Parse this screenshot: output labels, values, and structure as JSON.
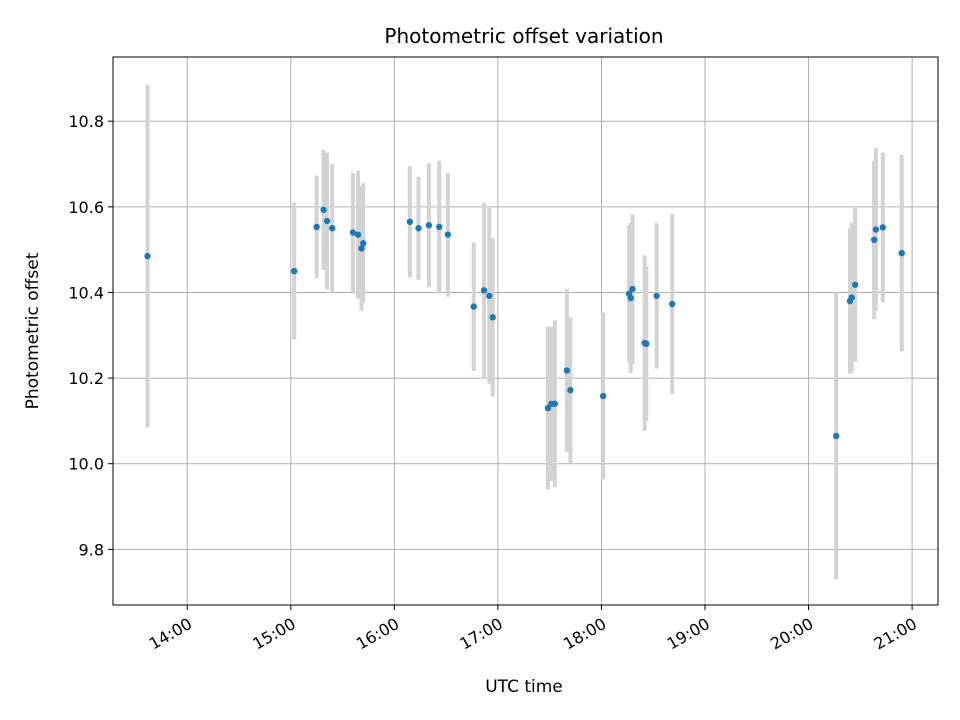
{
  "chart_data": {
    "type": "scatter",
    "title": "Photometric offset variation",
    "xlabel": "UTC time",
    "ylabel": "Photometric offset",
    "x_ticks": [
      "14:00",
      "15:00",
      "16:00",
      "17:00",
      "18:00",
      "19:00",
      "20:00",
      "21:00"
    ],
    "y_ticks": [
      "9.8",
      "10.0",
      "10.2",
      "10.4",
      "10.6",
      "10.8"
    ],
    "xlim": [
      "13:17",
      "21:15"
    ],
    "ylim": [
      9.67,
      10.95
    ],
    "grid": true,
    "colors": {
      "points": "#1f77b4",
      "errorbars": "#d3d3d3",
      "grid": "#b0b0b0"
    },
    "series": [
      {
        "points": [
          {
            "x": "13:37",
            "y": 10.485,
            "err": 0.4
          },
          {
            "x": "15:02",
            "y": 10.45,
            "err": 0.16
          },
          {
            "x": "15:15",
            "y": 10.553,
            "err": 0.12
          },
          {
            "x": "15:19",
            "y": 10.593,
            "err": 0.14
          },
          {
            "x": "15:21",
            "y": 10.567,
            "err": 0.16
          },
          {
            "x": "15:24",
            "y": 10.55,
            "err": 0.15
          },
          {
            "x": "15:36",
            "y": 10.54,
            "err": 0.14
          },
          {
            "x": "15:39",
            "y": 10.535,
            "err": 0.15
          },
          {
            "x": "15:41",
            "y": 10.503,
            "err": 0.145
          },
          {
            "x": "15:42",
            "y": 10.515,
            "err": 0.14
          },
          {
            "x": "16:09",
            "y": 10.565,
            "err": 0.13
          },
          {
            "x": "16:14",
            "y": 10.55,
            "err": 0.12
          },
          {
            "x": "16:20",
            "y": 10.557,
            "err": 0.145
          },
          {
            "x": "16:26",
            "y": 10.553,
            "err": 0.155
          },
          {
            "x": "16:31",
            "y": 10.535,
            "err": 0.145
          },
          {
            "x": "16:46",
            "y": 10.367,
            "err": 0.15
          },
          {
            "x": "16:52",
            "y": 10.405,
            "err": 0.205
          },
          {
            "x": "16:55",
            "y": 10.392,
            "err": 0.205
          },
          {
            "x": "16:57",
            "y": 10.342,
            "err": 0.185
          },
          {
            "x": "17:29",
            "y": 10.13,
            "err": 0.19
          },
          {
            "x": "17:31",
            "y": 10.14,
            "err": 0.18
          },
          {
            "x": "17:33",
            "y": 10.14,
            "err": 0.195
          },
          {
            "x": "17:40",
            "y": 10.218,
            "err": 0.19
          },
          {
            "x": "17:42",
            "y": 10.172,
            "err": 0.17
          },
          {
            "x": "18:01",
            "y": 10.158,
            "err": 0.195
          },
          {
            "x": "18:16",
            "y": 10.397,
            "err": 0.16
          },
          {
            "x": "18:17",
            "y": 10.387,
            "err": 0.175
          },
          {
            "x": "18:18",
            "y": 10.408,
            "err": 0.175
          },
          {
            "x": "18:25",
            "y": 10.282,
            "err": 0.205
          },
          {
            "x": "18:26",
            "y": 10.28,
            "err": 0.18
          },
          {
            "x": "18:32",
            "y": 10.392,
            "err": 0.17
          },
          {
            "x": "18:41",
            "y": 10.373,
            "err": 0.21
          },
          {
            "x": "20:16",
            "y": 10.065,
            "err": 0.335
          },
          {
            "x": "20:24",
            "y": 10.38,
            "err": 0.17
          },
          {
            "x": "20:25",
            "y": 10.388,
            "err": 0.175
          },
          {
            "x": "20:27",
            "y": 10.418,
            "err": 0.18
          },
          {
            "x": "20:38",
            "y": 10.523,
            "err": 0.185
          },
          {
            "x": "20:39",
            "y": 10.547,
            "err": 0.19
          },
          {
            "x": "20:43",
            "y": 10.552,
            "err": 0.175
          },
          {
            "x": "20:54",
            "y": 10.492,
            "err": 0.23
          }
        ]
      }
    ]
  }
}
